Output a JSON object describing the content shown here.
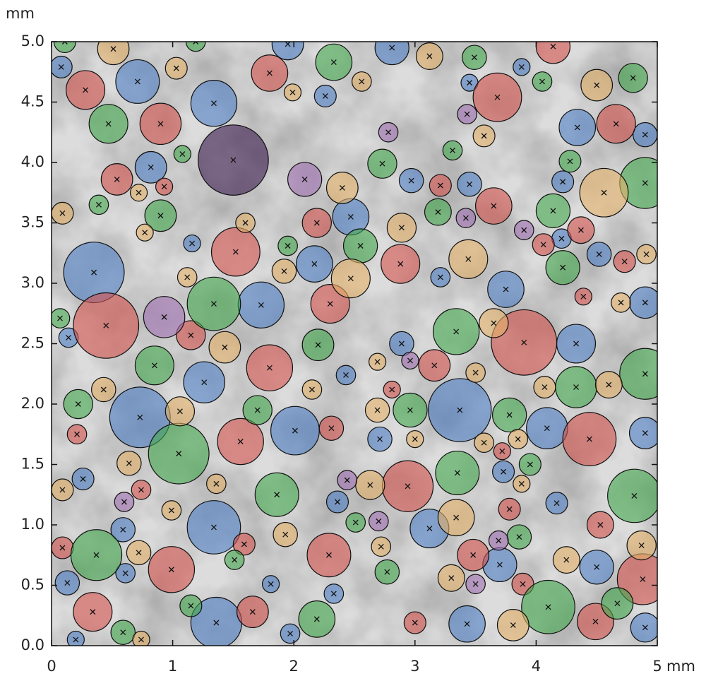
{
  "chart_data": {
    "type": "bubble",
    "xlabel": "mm",
    "ylabel": "mm",
    "xlim": [
      0,
      5
    ],
    "ylim": [
      0,
      5
    ],
    "xticks": [
      0,
      1,
      2,
      3,
      4,
      5
    ],
    "yticks": [
      {
        "value": 0,
        "label": "0.0"
      },
      0.5,
      {
        "value": 1,
        "label": "1.0"
      },
      1.5,
      {
        "value": 2,
        "label": "2.0"
      },
      2.5,
      {
        "value": 3,
        "label": "3.0"
      },
      3.5,
      {
        "value": 4,
        "label": "4.0"
      },
      4.5,
      {
        "value": 5,
        "label": "5.0"
      }
    ],
    "series": [
      {
        "color": "#4d7fc4",
        "x": [
          0.35,
          0.71,
          1.34,
          0.08,
          0.82,
          1.73,
          1.26,
          0.73,
          2.01,
          1.34,
          1.36,
          2.47,
          2.17,
          3.37,
          3.75,
          4.33,
          4.09,
          3.12,
          3.43,
          4.34,
          4.9,
          2.81,
          4.5,
          4.9,
          3.7,
          4.9,
          0.13,
          2.97,
          3.45,
          4.9,
          4.52,
          4.22,
          2.89,
          2.71,
          2.36,
          2.33,
          0.59,
          0.26,
          0.2,
          1.97,
          3.73,
          4.17,
          1.95,
          3.21,
          2.43,
          2.26,
          3.88,
          3.45,
          4.21,
          0.14,
          1.16,
          0.61,
          1.81
        ],
        "y": [
          3.09,
          4.67,
          4.49,
          4.79,
          3.96,
          2.82,
          2.18,
          1.89,
          1.78,
          0.98,
          0.19,
          3.55,
          3.16,
          1.95,
          2.95,
          2.5,
          1.8,
          0.97,
          0.18,
          4.29,
          2.84,
          4.95,
          0.65,
          1.76,
          0.67,
          0.15,
          0.52,
          3.85,
          3.82,
          4.23,
          3.24,
          3.84,
          2.5,
          1.71,
          1.19,
          0.43,
          0.96,
          1.38,
          0.05,
          0.1,
          1.44,
          1.18,
          4.98,
          3.05,
          2.24,
          4.55,
          4.79,
          4.66,
          3.37,
          2.55,
          3.33,
          0.6,
          0.51
        ],
        "r": [
          0.25,
          0.18,
          0.19,
          0.09,
          0.13,
          0.19,
          0.17,
          0.25,
          0.2,
          0.22,
          0.21,
          0.15,
          0.15,
          0.26,
          0.15,
          0.16,
          0.17,
          0.16,
          0.15,
          0.15,
          0.13,
          0.14,
          0.14,
          0.13,
          0.14,
          0.12,
          0.1,
          0.1,
          0.1,
          0.1,
          0.1,
          0.09,
          0.1,
          0.1,
          0.09,
          0.08,
          0.1,
          0.09,
          0.07,
          0.08,
          0.09,
          0.09,
          0.13,
          0.08,
          0.08,
          0.09,
          0.07,
          0.07,
          0.08,
          0.08,
          0.07,
          0.08,
          0.07
        ]
      },
      {
        "color": "#d4524c",
        "x": [
          0.45,
          0.28,
          0.9,
          1.8,
          1.52,
          1.8,
          1.56,
          0.99,
          2.29,
          2.94,
          3.9,
          4.44,
          3.68,
          4.66,
          2.88,
          2.3,
          2.19,
          3.65,
          3.16,
          4.88,
          4.49,
          0.34,
          1.66,
          0.54,
          1.15,
          2.31,
          3.21,
          3.48,
          4.37,
          4.06,
          4.73,
          4.53,
          3.0,
          3.78,
          1.59,
          0.74,
          0.21,
          0.09,
          3.89,
          3.72,
          4.39,
          4.14,
          2.81,
          0.93
        ],
        "y": [
          2.65,
          4.6,
          4.32,
          4.74,
          3.26,
          2.3,
          1.69,
          0.63,
          0.75,
          1.32,
          2.51,
          1.71,
          4.54,
          4.32,
          3.16,
          2.83,
          3.5,
          3.64,
          2.32,
          0.55,
          0.2,
          0.28,
          0.28,
          3.86,
          2.57,
          1.8,
          3.81,
          0.75,
          3.44,
          3.32,
          3.18,
          1.0,
          0.19,
          1.13,
          0.84,
          1.29,
          1.75,
          0.81,
          0.51,
          1.61,
          2.89,
          4.96,
          2.12,
          3.8
        ],
        "r": [
          0.27,
          0.16,
          0.17,
          0.15,
          0.2,
          0.19,
          0.19,
          0.19,
          0.18,
          0.21,
          0.27,
          0.22,
          0.2,
          0.16,
          0.16,
          0.16,
          0.12,
          0.15,
          0.13,
          0.21,
          0.15,
          0.16,
          0.13,
          0.13,
          0.12,
          0.1,
          0.09,
          0.13,
          0.11,
          0.09,
          0.09,
          0.11,
          0.09,
          0.09,
          0.09,
          0.08,
          0.08,
          0.09,
          0.09,
          0.07,
          0.07,
          0.14,
          0.07,
          0.07
        ]
      },
      {
        "color": "#42a84c",
        "x": [
          1.34,
          1.05,
          0.37,
          0.47,
          2.33,
          1.86,
          3.34,
          3.35,
          4.1,
          4.81,
          4.9,
          4.9,
          4.33,
          0.85,
          0.9,
          2.19,
          2.55,
          2.73,
          2.96,
          3.78,
          4.14,
          4.22,
          4.8,
          2.2,
          0.22,
          1.7,
          3.19,
          3.49,
          4.67,
          2.77,
          3.86,
          0.59,
          0.39,
          1.95,
          4.28,
          3.95,
          0.07,
          3.31,
          4.05,
          1.08,
          1.51,
          1.15,
          2.51,
          0.11,
          1.19
        ],
        "y": [
          2.83,
          1.59,
          0.75,
          4.32,
          4.83,
          1.25,
          2.6,
          1.43,
          0.32,
          1.24,
          2.25,
          3.83,
          2.14,
          2.32,
          3.56,
          0.22,
          3.31,
          3.99,
          1.95,
          1.91,
          3.6,
          3.13,
          4.7,
          2.49,
          2.0,
          1.95,
          3.59,
          4.87,
          0.35,
          0.61,
          0.9,
          0.11,
          3.65,
          3.31,
          4.01,
          1.5,
          2.71,
          4.1,
          4.67,
          4.07,
          0.71,
          0.33,
          1.02,
          5.0,
          5.0
        ],
        "r": [
          0.22,
          0.25,
          0.21,
          0.16,
          0.15,
          0.18,
          0.19,
          0.18,
          0.22,
          0.22,
          0.21,
          0.21,
          0.17,
          0.16,
          0.13,
          0.15,
          0.14,
          0.12,
          0.14,
          0.14,
          0.14,
          0.14,
          0.12,
          0.13,
          0.12,
          0.12,
          0.11,
          0.1,
          0.13,
          0.1,
          0.1,
          0.1,
          0.08,
          0.08,
          0.09,
          0.09,
          0.08,
          0.08,
          0.08,
          0.07,
          0.08,
          0.09,
          0.08,
          0.09,
          0.08
        ]
      },
      {
        "color": "#e2b068",
        "x": [
          4.56,
          2.47,
          3.44,
          1.43,
          1.06,
          0.64,
          3.81,
          1.93,
          0.72,
          0.43,
          2.4,
          2.89,
          3.3,
          3.34,
          2.63,
          2.69,
          3.65,
          4.6,
          4.5,
          4.25,
          4.87,
          1.92,
          0.51,
          3.12,
          1.03,
          0.09,
          4.07,
          3.5,
          2.15,
          2.69,
          0.09,
          1.36,
          3.85,
          3.57,
          3.0,
          3.57,
          2.56,
          1.99,
          0.72,
          0.77,
          1.6,
          0.99,
          1.12,
          4.91,
          4.7,
          2.72,
          0.74,
          3.88
        ],
        "y": [
          3.75,
          3.04,
          3.2,
          2.47,
          1.94,
          1.51,
          0.17,
          0.92,
          0.77,
          2.12,
          3.79,
          3.46,
          0.56,
          1.06,
          1.33,
          1.95,
          2.67,
          2.16,
          4.64,
          0.71,
          0.83,
          3.1,
          4.94,
          4.88,
          4.78,
          3.58,
          2.14,
          2.26,
          2.12,
          2.35,
          1.29,
          1.34,
          1.71,
          1.68,
          1.71,
          4.22,
          4.67,
          4.58,
          3.75,
          3.42,
          3.5,
          1.12,
          3.05,
          3.24,
          2.84,
          0.82,
          0.05,
          1.34
        ],
        "r": [
          0.2,
          0.16,
          0.16,
          0.13,
          0.12,
          0.1,
          0.13,
          0.1,
          0.1,
          0.1,
          0.13,
          0.12,
          0.11,
          0.15,
          0.12,
          0.1,
          0.12,
          0.11,
          0.13,
          0.11,
          0.12,
          0.1,
          0.13,
          0.11,
          0.09,
          0.09,
          0.09,
          0.08,
          0.08,
          0.07,
          0.09,
          0.08,
          0.08,
          0.08,
          0.07,
          0.09,
          0.08,
          0.07,
          0.07,
          0.07,
          0.08,
          0.08,
          0.08,
          0.08,
          0.08,
          0.08,
          0.07,
          0.07
        ]
      },
      {
        "color": "#a070b0",
        "x": [
          0.93,
          2.09,
          2.78,
          3.43,
          3.42,
          3.9,
          2.44,
          2.7,
          0.6,
          3.5,
          3.69,
          2.96
        ],
        "y": [
          2.72,
          3.86,
          4.25,
          4.4,
          3.54,
          3.44,
          1.37,
          1.03,
          1.19,
          0.51,
          0.87,
          2.36
        ],
        "r": [
          0.17,
          0.14,
          0.08,
          0.08,
          0.08,
          0.08,
          0.08,
          0.08,
          0.08,
          0.08,
          0.08,
          0.07
        ]
      },
      {
        "color": "#3a1a4e",
        "x": [
          1.5
        ],
        "y": [
          4.02
        ],
        "r": [
          0.29
        ]
      }
    ]
  }
}
